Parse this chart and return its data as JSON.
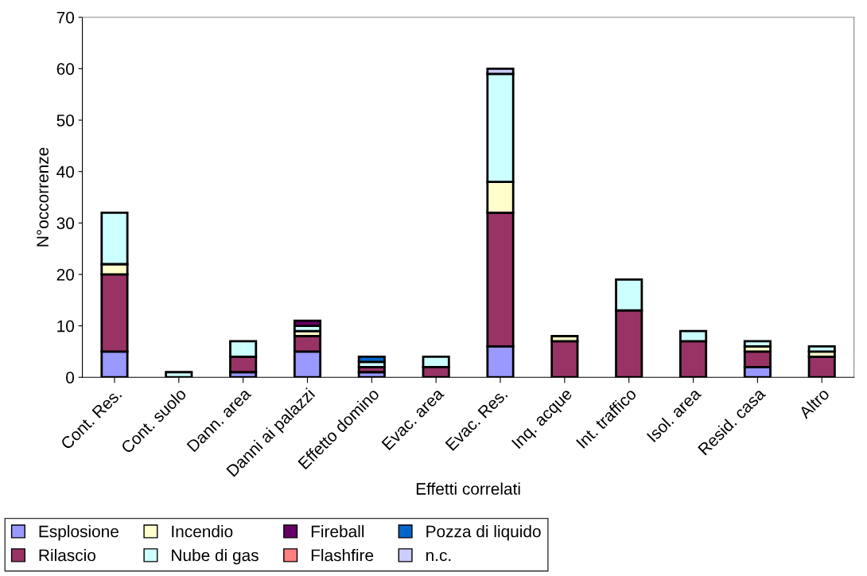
{
  "chart_data": {
    "type": "bar",
    "stacked": true,
    "xlabel": "Effetti correlati",
    "ylabel": "N°occorrenze",
    "categories": [
      "Cont. Res.",
      "Cont. suolo",
      "Dann. area",
      "Danni ai palazzi",
      "Effetto domino",
      "Evac. area",
      "Evac. Res.",
      "Inq. acque",
      "Int. traffico",
      "Isol. area",
      "Resid. casa",
      "Altro"
    ],
    "series": [
      {
        "name": "Esplosione",
        "color": "#9999ff",
        "values": [
          5,
          null,
          1,
          5,
          1,
          null,
          6,
          null,
          null,
          null,
          2,
          null
        ]
      },
      {
        "name": "Rilascio",
        "color": "#993366",
        "values": [
          15,
          null,
          3,
          3,
          1,
          2,
          26,
          7,
          13,
          7,
          3,
          4
        ]
      },
      {
        "name": "Incendio",
        "color": "#ffffcc",
        "values": [
          2,
          null,
          null,
          1,
          null,
          null,
          6,
          1,
          null,
          null,
          1,
          1
        ]
      },
      {
        "name": "Nube di gas",
        "color": "#ccffff",
        "values": [
          10,
          1,
          3,
          1,
          1,
          2,
          21,
          null,
          6,
          2,
          1,
          1
        ]
      },
      {
        "name": "Fireball",
        "color": "#660066",
        "values": [
          null,
          null,
          null,
          1,
          null,
          null,
          null,
          null,
          null,
          null,
          null,
          null
        ]
      },
      {
        "name": "Flashfire",
        "color": "#ff8080",
        "values": [
          null,
          null,
          null,
          null,
          null,
          null,
          null,
          null,
          null,
          null,
          null,
          null
        ]
      },
      {
        "name": "Pozza di liquido",
        "color": "#0066cc",
        "values": [
          null,
          null,
          null,
          null,
          1,
          null,
          null,
          null,
          null,
          null,
          null,
          null
        ]
      },
      {
        "name": "n.c.",
        "color": "#ccccff",
        "values": [
          null,
          null,
          null,
          null,
          null,
          null,
          1,
          null,
          null,
          null,
          null,
          null
        ]
      }
    ],
    "ylim": [
      0,
      70
    ],
    "yticks": [
      0,
      10,
      20,
      30,
      40,
      50,
      60,
      70
    ],
    "grid": false,
    "legend": "bottom"
  }
}
